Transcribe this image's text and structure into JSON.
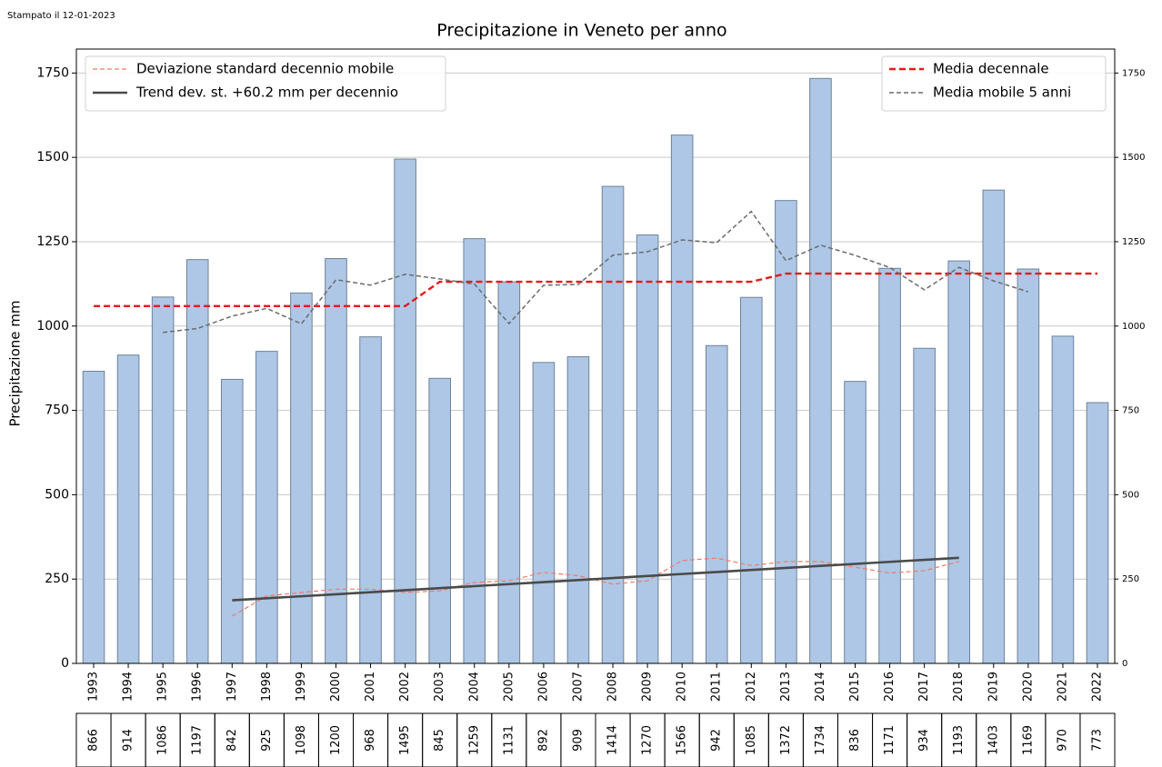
{
  "printed_note": "Stampato il 12-01-2023",
  "chart_data": {
    "type": "bar",
    "title": "Precipitazione in Veneto per anno",
    "ylabel": "Precipitazione mm",
    "categories": [
      "1993",
      "1994",
      "1995",
      "1996",
      "1997",
      "1998",
      "1999",
      "2000",
      "2001",
      "2002",
      "2003",
      "2004",
      "2005",
      "2006",
      "2007",
      "2008",
      "2009",
      "2010",
      "2011",
      "2012",
      "2013",
      "2014",
      "2015",
      "2016",
      "2017",
      "2018",
      "2019",
      "2020",
      "2021",
      "2022"
    ],
    "values": [
      866,
      914,
      1086,
      1197,
      842,
      925,
      1098,
      1200,
      968,
      1495,
      845,
      1259,
      1131,
      892,
      909,
      1414,
      1270,
      1566,
      942,
      1085,
      1372,
      1734,
      836,
      1171,
      934,
      1193,
      1403,
      1169,
      970,
      773
    ],
    "color": "#aec7e6",
    "edgecolor": "#6e8296",
    "ylim": [
      0,
      1821
    ],
    "yticks": [
      0,
      250,
      500,
      750,
      1000,
      1250,
      1500,
      1750
    ],
    "y2lim": [
      0,
      1821
    ],
    "y2ticks": [
      0,
      250,
      500,
      750,
      1000,
      1250,
      1500,
      1750
    ],
    "grid": true,
    "series": [
      {
        "name": "Deviazione standard decennio mobile",
        "color": "#f07a68",
        "dash": "5,3",
        "width": 1.2,
        "legend": "upper left",
        "values": [
          null,
          null,
          null,
          null,
          140,
          200,
          210,
          220,
          220,
          210,
          215,
          240,
          245,
          270,
          260,
          235,
          245,
          305,
          312,
          290,
          302,
          302,
          285,
          268,
          275,
          302,
          null,
          null,
          null,
          null
        ]
      },
      {
        "name": "Trend dev. st. +60.2 mm per decennio",
        "color": "#4a4a4a",
        "dash": "",
        "width": 2.6,
        "legend": "upper left",
        "values": [
          null,
          null,
          null,
          null,
          187,
          193,
          199,
          205,
          211,
          217,
          223,
          229,
          235,
          241,
          247,
          253,
          259,
          265,
          271,
          277,
          283,
          289,
          295,
          301,
          307,
          313,
          null,
          null,
          null,
          null
        ]
      },
      {
        "name": "Media decennale",
        "color": "#e41a1c",
        "dash": "7,4",
        "width": 2.4,
        "legend": "upper right",
        "values": [
          1059.1,
          1059.1,
          1059.1,
          1059.1,
          1059.1,
          1059.1,
          1059.1,
          1059.1,
          1059.1,
          1059.1,
          1131.3,
          1131.3,
          1131.3,
          1131.3,
          1131.3,
          1131.3,
          1131.3,
          1131.3,
          1131.3,
          1131.3,
          1155.5,
          1155.5,
          1155.5,
          1155.5,
          1155.5,
          1155.5,
          1155.5,
          1155.5,
          1155.5,
          1155.5
        ]
      },
      {
        "name": "Media mobile 5 anni",
        "color": "#6b6b6b",
        "dash": "5,3",
        "width": 1.5,
        "legend": "upper right",
        "values": [
          null,
          null,
          981,
          992.8,
          1029.6,
          1052.4,
          1006.6,
          1137.2,
          1121.2,
          1153.4,
          1139.6,
          1124.4,
          1007.2,
          1121,
          1123.2,
          1210.2,
          1220.2,
          1255.4,
          1247,
          1339.8,
          1193.8,
          1239.6,
          1209.4,
          1173.6,
          1107.4,
          1174,
          1133.8,
          1101.6,
          null,
          null
        ]
      }
    ]
  }
}
